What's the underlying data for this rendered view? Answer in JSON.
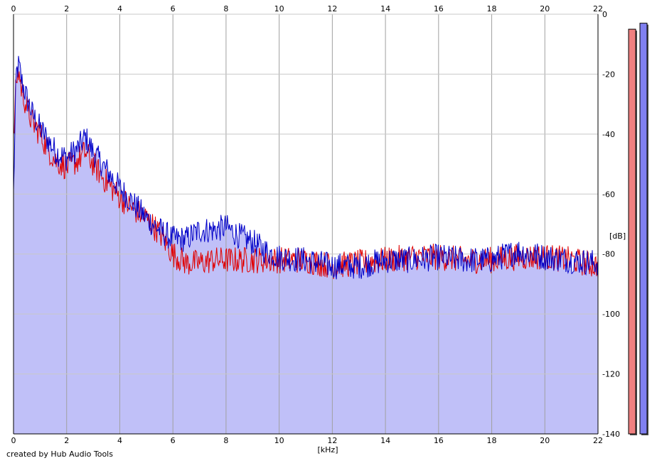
{
  "chart_data": {
    "type": "area",
    "xlabel": "[kHz]",
    "ylabel": "[dB]",
    "xlim": [
      0,
      22
    ],
    "ylim": [
      -140,
      0
    ],
    "x_ticks": [
      "0",
      "2",
      "4",
      "6",
      "8",
      "10",
      "12",
      "14",
      "16",
      "18",
      "20",
      "22"
    ],
    "y_ticks": [
      "0",
      "-20",
      "-40",
      "-60",
      "-80",
      "-100",
      "-120",
      "-140"
    ],
    "grid": true,
    "series": [
      {
        "color": "#0000c8",
        "fill_color": "#c0c0f8",
        "x": [
          0.0,
          0.1,
          0.2,
          0.3,
          0.5,
          0.7,
          1.0,
          1.3,
          1.6,
          2.0,
          2.4,
          2.7,
          3.0,
          3.5,
          4.0,
          4.5,
          5.0,
          5.5,
          6.0,
          6.5,
          7.0,
          7.5,
          8.0,
          8.5,
          9.0,
          9.5,
          10.0,
          11.0,
          12.0,
          13.0,
          14.0,
          15.0,
          16.0,
          17.0,
          18.0,
          19.0,
          20.0,
          21.0,
          22.0
        ],
        "values": [
          -60,
          -20,
          -17,
          -22,
          -28,
          -33,
          -38,
          -42,
          -46,
          -48,
          -45,
          -41,
          -46,
          -52,
          -58,
          -63,
          -68,
          -72,
          -75,
          -75,
          -72,
          -72,
          -71,
          -74,
          -76,
          -79,
          -81,
          -82,
          -84,
          -84,
          -82,
          -82,
          -81,
          -82,
          -82,
          -79,
          -81,
          -82,
          -83
        ]
      },
      {
        "color": "#e00000",
        "x": [
          0.0,
          0.1,
          0.2,
          0.3,
          0.5,
          0.7,
          1.0,
          1.3,
          1.6,
          2.0,
          2.4,
          2.7,
          3.0,
          3.5,
          4.0,
          4.5,
          5.0,
          5.5,
          6.0,
          6.5,
          7.0,
          7.5,
          8.0,
          8.5,
          9.0,
          9.5,
          10.0,
          11.0,
          12.0,
          13.0,
          14.0,
          15.0,
          16.0,
          17.0,
          18.0,
          19.0,
          20.0,
          21.0,
          22.0
        ],
        "values": [
          -43,
          -22,
          -19,
          -25,
          -31,
          -36,
          -40,
          -45,
          -49,
          -51,
          -49,
          -46,
          -50,
          -56,
          -61,
          -65,
          -68,
          -73,
          -80,
          -83,
          -83,
          -82,
          -82,
          -82,
          -82,
          -82,
          -82,
          -82,
          -84,
          -83,
          -82,
          -81,
          -81,
          -82,
          -82,
          -81,
          -81,
          -82,
          -84
        ]
      }
    ],
    "level_meters": [
      {
        "color": "#f08080",
        "value": -5
      },
      {
        "color": "#8080f0",
        "value": -3
      }
    ]
  },
  "credit": "created by Hub Audio Tools"
}
